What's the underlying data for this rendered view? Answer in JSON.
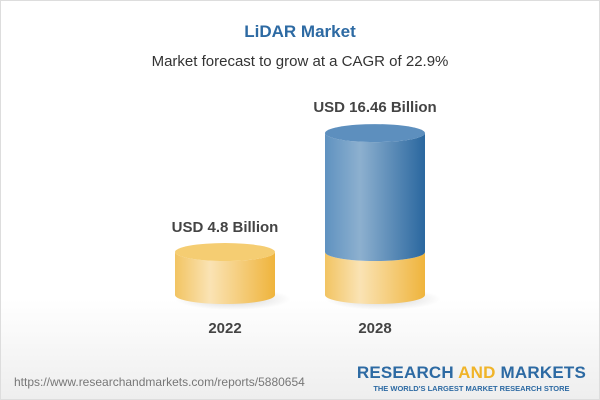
{
  "title": "LiDAR Market",
  "subtitle": "Market forecast to grow at a CAGR of 22.9%",
  "chart_data": {
    "type": "bar",
    "style": "3d-cylinder",
    "categories": [
      "2022",
      "2028"
    ],
    "values": [
      4.8,
      16.46
    ],
    "data_labels": [
      "USD 4.8 Billion",
      "USD 16.46 Billion"
    ],
    "unit": "USD Billion",
    "colors": {
      "base": "#f3c15a",
      "growth": "#3f7bb0"
    }
  },
  "footer": {
    "url": "https://www.researchandmarkets.com/reports/5880654",
    "logo_part1": "RESEARCH ",
    "logo_part2": "AND",
    "logo_part3": " MARKETS",
    "logo_tagline": "THE WORLD'S LARGEST MARKET RESEARCH STORE"
  }
}
